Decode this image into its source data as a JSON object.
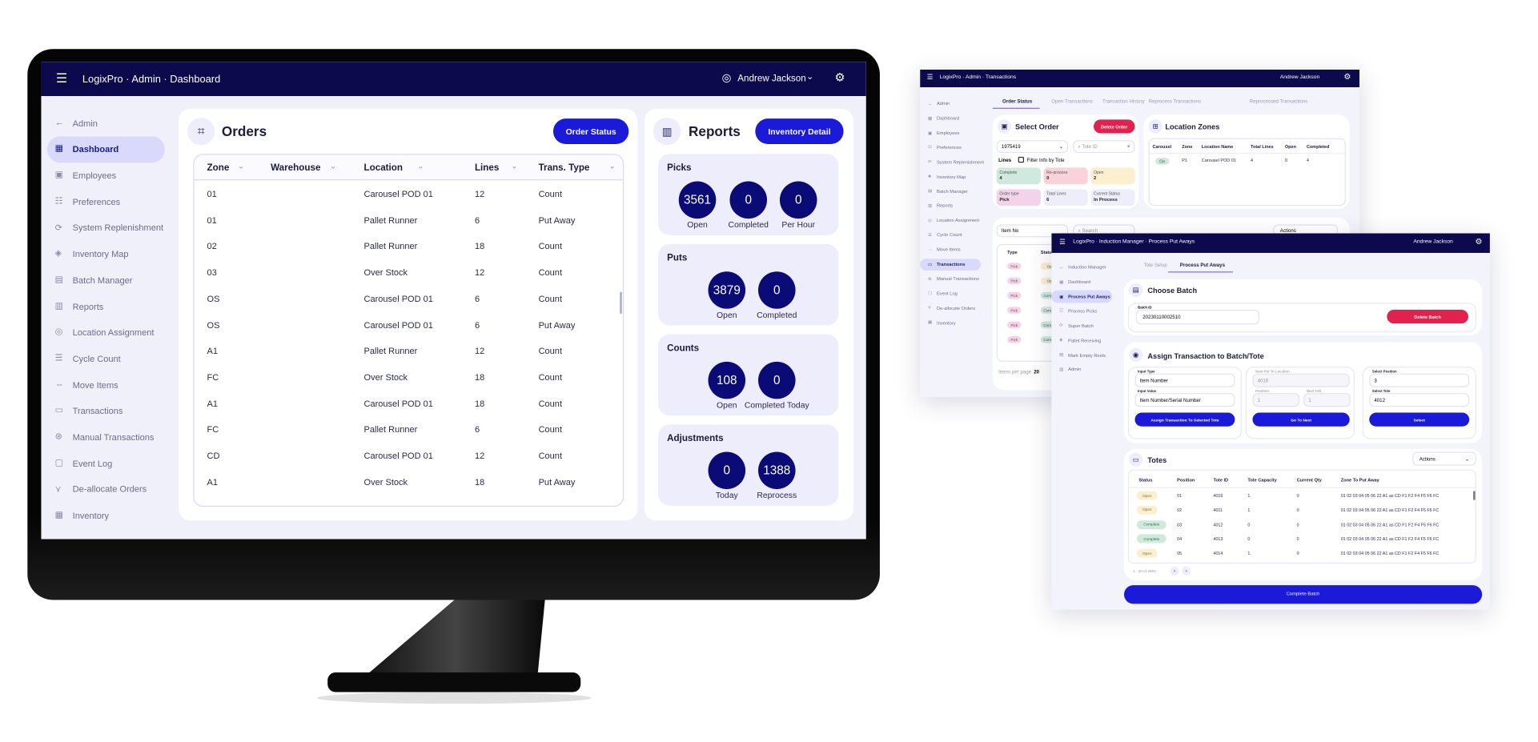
{
  "colors": {
    "navy": "#0c0a4d",
    "accent": "#1a1ad8",
    "danger": "#e0234e",
    "circle": "#0b0b78",
    "active_pill": "#d9d9fb"
  },
  "dashboard": {
    "header": {
      "title": "LogixPro · Admin · Dashboard",
      "user": "Andrew Jackson"
    },
    "sidebar": {
      "back": "Admin",
      "items": [
        "Dashboard",
        "Employees",
        "Preferences",
        "System Replenishment",
        "Inventory Map",
        "Batch Manager",
        "Reports",
        "Location Assignment",
        "Cycle Count",
        "Move Items",
        "Transactions",
        "Manual Transactions",
        "Event Log",
        "De-allocate Orders",
        "Inventory"
      ],
      "active": "Dashboard"
    },
    "orders": {
      "title": "Orders",
      "button": "Order Status",
      "columns": [
        "Zone",
        "Warehouse",
        "Location",
        "Lines",
        "Trans. Type"
      ],
      "rows": [
        [
          "01",
          "",
          "Carousel POD 01",
          "12",
          "Count"
        ],
        [
          "01",
          "",
          "Pallet Runner",
          "6",
          "Put Away"
        ],
        [
          "02",
          "",
          "Pallet Runner",
          "18",
          "Count"
        ],
        [
          "03",
          "",
          "Over Stock",
          "12",
          "Count"
        ],
        [
          "OS",
          "",
          "Carousel POD 01",
          "6",
          "Count"
        ],
        [
          "OS",
          "",
          "Carousel POD 01",
          "6",
          "Put Away"
        ],
        [
          "A1",
          "",
          "Pallet Runner",
          "12",
          "Count"
        ],
        [
          "FC",
          "",
          "Over Stock",
          "18",
          "Count"
        ],
        [
          "A1",
          "",
          "Carousel POD 01",
          "18",
          "Count"
        ],
        [
          "FC",
          "",
          "Pallet Runner",
          "6",
          "Count"
        ],
        [
          "CD",
          "",
          "Carousel POD 01",
          "12",
          "Count"
        ],
        [
          "A1",
          "",
          "Over Stock",
          "18",
          "Put Away"
        ]
      ]
    },
    "reports": {
      "title": "Reports",
      "button": "Inventory Detail",
      "panels": [
        {
          "title": "Picks",
          "stats": [
            {
              "value": "3561",
              "label": "Open"
            },
            {
              "value": "0",
              "label": "Completed"
            },
            {
              "value": "0",
              "label": "Per Hour"
            }
          ]
        },
        {
          "title": "Puts",
          "stats": [
            {
              "value": "3879",
              "label": "Open"
            },
            {
              "value": "0",
              "label": "Completed"
            }
          ]
        },
        {
          "title": "Counts",
          "stats": [
            {
              "value": "108",
              "label": "Open"
            },
            {
              "value": "0",
              "label": "Completed Today"
            }
          ]
        },
        {
          "title": "Adjustments",
          "stats": [
            {
              "value": "0",
              "label": "Today"
            },
            {
              "value": "1388",
              "label": "Reprocess"
            }
          ]
        }
      ]
    }
  },
  "transactions": {
    "header": {
      "title": "LogixPro · Admin · Transactions",
      "user": "Andrew Jackson"
    },
    "sidebar": {
      "back": "Admin",
      "items": [
        "Dashboard",
        "Employees",
        "Preferences",
        "System Replenishment",
        "Inventory Map",
        "Batch Manager",
        "Reports",
        "Location Assignment",
        "Cycle Count",
        "Move Items",
        "Transactions",
        "Manual Transactions",
        "Event Log",
        "De-allocate Orders",
        "Inventory"
      ],
      "active": "Transactions"
    },
    "tabs": [
      "Order Status",
      "Open Transactions",
      "Transaction History",
      "Reprocess Transactions",
      "Reprocessed Transactions"
    ],
    "select_order": {
      "title": "Select Order",
      "delete": "Delete Order",
      "order_value": "1975419",
      "tote_placeholder": "Tote ID",
      "lines": "Lines",
      "filter": "Filter Info by Tote",
      "stats": [
        {
          "label": "Complete",
          "value": "4",
          "bg": "#cfeadd"
        },
        {
          "label": "Re-process",
          "value": "0",
          "bg": "#f8d3da"
        },
        {
          "label": "Open",
          "value": "2",
          "bg": "#fcefd0"
        },
        {
          "label": "Order type",
          "value": "Pick",
          "bg": "#f3d3ea"
        },
        {
          "label": "Total Lines",
          "value": "6",
          "bg": "#eeeefb"
        },
        {
          "label": "Current Status",
          "value": "In Process",
          "bg": "#eeeefb"
        }
      ]
    },
    "location_zones": {
      "title": "Location Zones",
      "columns": [
        "Carousel",
        "Zone",
        "Location Name",
        "Total Lines",
        "Open",
        "Completed"
      ],
      "rows": [
        [
          "On",
          "P1",
          "Carousel POD 01",
          "4",
          "0",
          "4"
        ]
      ]
    },
    "lines": {
      "filter_value": "Item No",
      "search_placeholder": "Search",
      "actions": "Actions",
      "columns": [
        "Type",
        "Status"
      ],
      "types": [
        "Pick",
        "Pick",
        "Pick",
        "Pick",
        "Pick",
        "Pick"
      ],
      "statuses": [
        "Open",
        "Open",
        "Complete",
        "Complete",
        "Complete",
        "Complete"
      ],
      "items_per_page_label": "Items per page",
      "items_per_page": "20"
    }
  },
  "induction": {
    "header": {
      "title": "LogixPro · Induction Manager · Process Put Aways",
      "user": "Andrew Jackson"
    },
    "sidebar": {
      "back": "Induction Manager",
      "items": [
        "Dashboard",
        "Process Put Aways",
        "Process Picks",
        "Super Batch",
        "Pallet Receiving",
        "Mark Empty Reels",
        "Admin"
      ],
      "active": "Process Put Aways"
    },
    "tabs": [
      "Tote Setup",
      "Process Put Aways"
    ],
    "choose_batch": {
      "title": "Choose Batch",
      "batch_label": "Batch ID",
      "batch_value": "20230110002510",
      "delete": "Delete Batch"
    },
    "assign": {
      "title": "Assign Transaction to Batch/Tote",
      "input_type_label": "Input Type",
      "input_type": "Item Number",
      "input_value_label": "Input Value",
      "input_value": "Item Number/Serial Number",
      "assign_btn": "Assign Transaction To Selected Tote",
      "next_loc_label": "Next Put To Location",
      "next_loc": "4016",
      "position_label": "Position",
      "position": "1",
      "next_cell_label": "Next Cell",
      "next_cell": "1",
      "next_btn": "Go To Next",
      "select_pos_label": "Select Position",
      "select_pos": "3",
      "select_tote_label": "Select Tote",
      "select_tote": "4012",
      "select_btn": "Select"
    },
    "totes": {
      "title": "Totes",
      "actions": "Actions",
      "columns": [
        "Status",
        "Position",
        "Tote ID",
        "Tote Capacity",
        "Current Qty",
        "Zone To Put Away"
      ],
      "rows": [
        [
          "Open",
          "01",
          "4016",
          "1",
          "0",
          "01 02 03 04 05 06 22 A1 as CD F1 F2 F4 F5 F6 FC"
        ],
        [
          "Open",
          "02",
          "4011",
          "1",
          "0",
          "01 02 03 04 05 06 22 A1 as CD F1 F2 F4 F5 F6 FC"
        ],
        [
          "Complete",
          "03",
          "4012",
          "0",
          "0",
          "01 02 03 04 05 06 22 A1 as CD F1 F2 F4 F5 F6 FC"
        ],
        [
          "Complete",
          "04",
          "4013",
          "0",
          "0",
          "01 02 03 04 05 06 22 A1 as CD F1 F2 F4 F5 F6 FC"
        ],
        [
          "Open",
          "05",
          "4014",
          "1",
          "0",
          "01 02 03 04 05 06 22 A1 as CD F1 F2 F4 F5 F6 FC"
        ]
      ],
      "pagination": "1 - 20 of 2550"
    },
    "complete_btn": "Complete Batch"
  }
}
